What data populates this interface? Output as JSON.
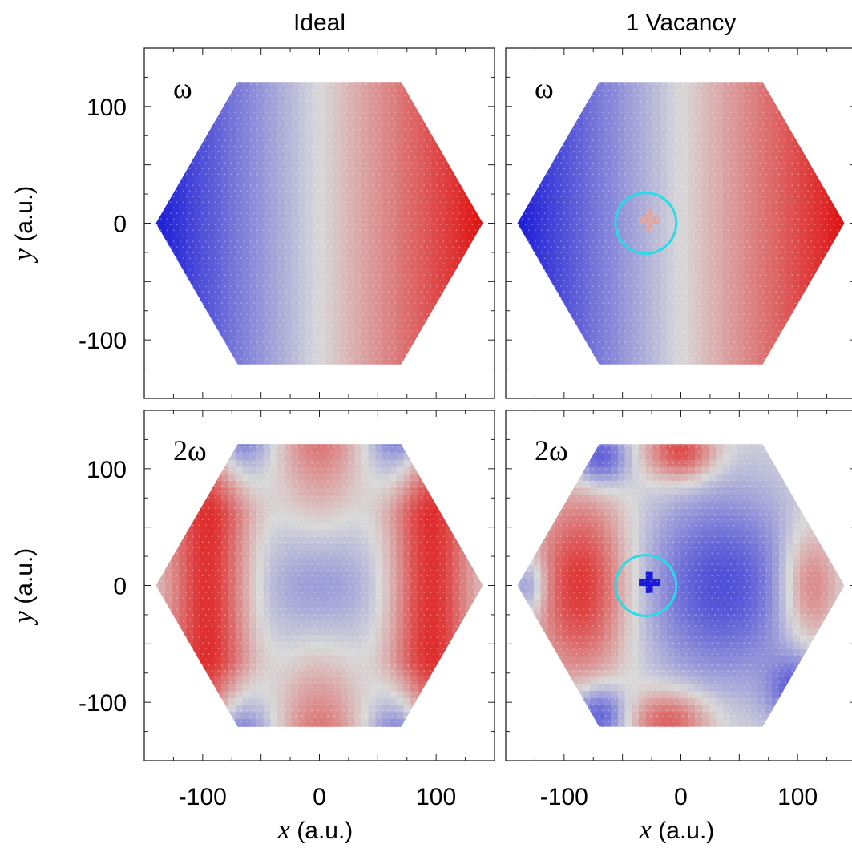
{
  "chart_data": [
    {
      "type": "heatmap",
      "column_title": "Ideal",
      "panel_label": "ω",
      "xlim": [
        -150,
        150
      ],
      "ylim": [
        -150,
        150
      ],
      "xticks": [
        -100,
        0,
        100
      ],
      "yticks": [
        100,
        0,
        -100
      ],
      "xlabel": "",
      "ylabel": "y (a.u.)",
      "field": "linear_x",
      "vacancy": null,
      "colormap": {
        "low": "#1a1ad8",
        "mid": "#d9d9d9",
        "high": "#e01010"
      }
    },
    {
      "type": "heatmap",
      "column_title": "1 Vacancy",
      "panel_label": "ω",
      "xlim": [
        -150,
        150
      ],
      "ylim": [
        -150,
        150
      ],
      "xticks": [
        -100,
        0,
        100
      ],
      "yticks": [
        100,
        0,
        -100
      ],
      "xlabel": "",
      "ylabel": "",
      "field": "linear_x",
      "vacancy": {
        "x": -30,
        "y": 0,
        "radius": 26
      },
      "colormap": {
        "low": "#1a1ad8",
        "mid": "#d9d9d9",
        "high": "#e01010"
      }
    },
    {
      "type": "heatmap",
      "column_title": "",
      "panel_label": "2ω",
      "xlim": [
        -150,
        150
      ],
      "ylim": [
        -150,
        150
      ],
      "xticks": [
        -100,
        0,
        100
      ],
      "yticks": [
        100,
        0,
        -100
      ],
      "xlabel": "x (a.u.)",
      "ylabel": "y (a.u.)",
      "field": "second_harmonic",
      "vacancy": null,
      "colormap": {
        "low": "#1a1ad8",
        "mid": "#d9d9d9",
        "high": "#e01010"
      }
    },
    {
      "type": "heatmap",
      "column_title": "",
      "panel_label": "2ω",
      "xlim": [
        -150,
        150
      ],
      "ylim": [
        -150,
        150
      ],
      "xticks": [
        -100,
        0,
        100
      ],
      "yticks": [
        100,
        0,
        -100
      ],
      "xlabel": "x (a.u.)",
      "ylabel": "",
      "field": "second_harmonic_vacancy",
      "vacancy": {
        "x": -30,
        "y": 0,
        "radius": 26
      },
      "colormap": {
        "low": "#1a1ad8",
        "mid": "#d9d9d9",
        "high": "#e01010"
      }
    }
  ],
  "hexagon": {
    "half_width": 140,
    "half_height": 121
  },
  "annotation_color": "#22dde6"
}
